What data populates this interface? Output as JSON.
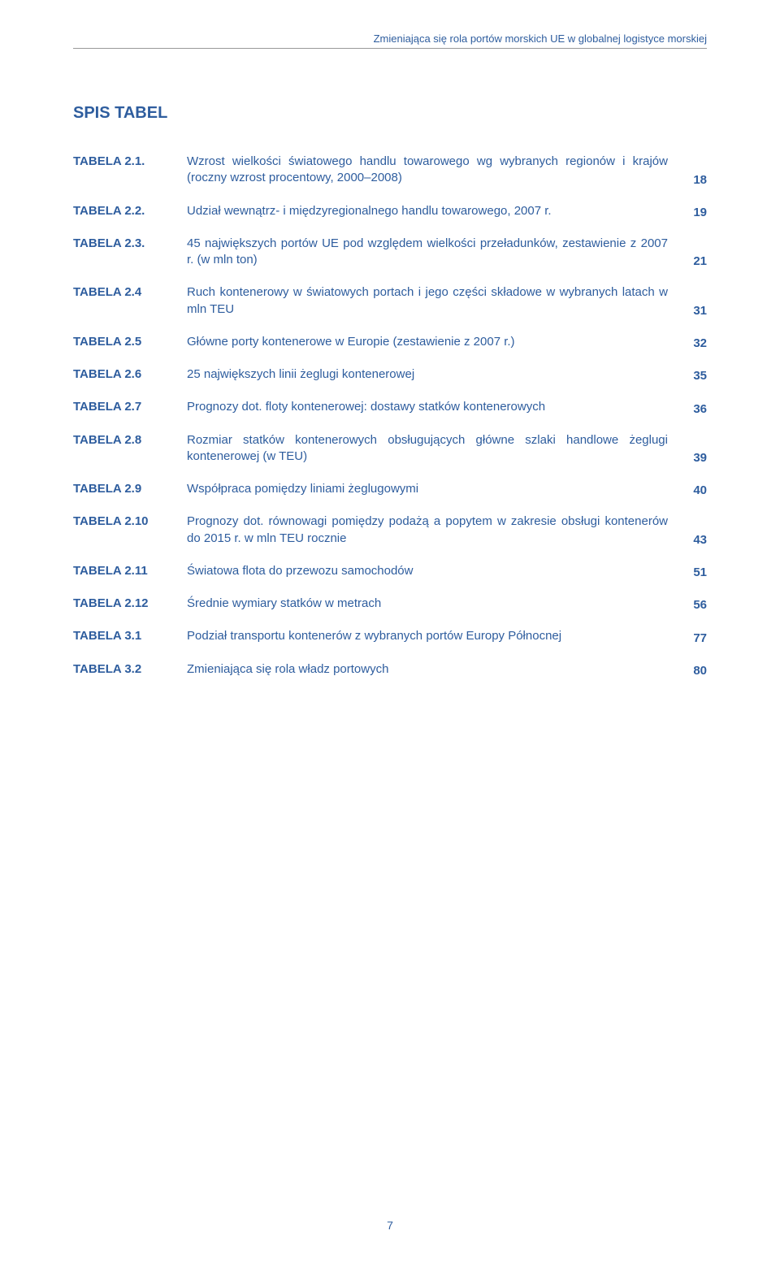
{
  "running_header": "Zmieniająca się rola portów morskich UE w globalnej logistyce morskiej",
  "title": "SPIS TABEL",
  "page_number": "7",
  "entries": [
    {
      "label": "TABELA 2.1.",
      "desc": "Wzrost wielkości światowego handlu towarowego wg wybranych regionów i krajów (roczny wzrost procentowy, 2000–2008)",
      "page": "18"
    },
    {
      "label": "TABELA 2.2.",
      "desc": "Udział wewnątrz- i międzyregionalnego handlu towarowego, 2007 r.",
      "page": "19"
    },
    {
      "label": "TABELA 2.3.",
      "desc": "45 największych portów UE pod względem wielkości przeładunków, zestawienie z 2007 r. (w mln ton)",
      "page": "21"
    },
    {
      "label": "TABELA 2.4",
      "desc": "Ruch kontenerowy w światowych portach i jego części składowe w wybranych latach w mln TEU",
      "page": "31"
    },
    {
      "label": "TABELA 2.5",
      "desc": "Główne porty kontenerowe w Europie (zestawienie z 2007 r.)",
      "page": "32"
    },
    {
      "label": "TABELA 2.6",
      "desc": "25 największych linii żeglugi kontenerowej",
      "page": "35"
    },
    {
      "label": "TABELA 2.7",
      "desc": "Prognozy dot. floty kontenerowej: dostawy statków kontenerowych",
      "page": "36"
    },
    {
      "label": "TABELA 2.8",
      "desc": "Rozmiar statków kontenerowych obsługujących główne szlaki handlowe żeglugi kontenerowej (w TEU)",
      "page": "39"
    },
    {
      "label": "TABELA 2.9",
      "desc": "Współpraca pomiędzy liniami żeglugowymi",
      "page": "40"
    },
    {
      "label": "TABELA 2.10",
      "desc": "Prognozy dot. równowagi pomiędzy podażą a popytem w zakresie obsługi kontenerów do 2015 r. w mln TEU rocznie",
      "page": "43"
    },
    {
      "label": "TABELA 2.11",
      "desc": "Światowa flota do przewozu samochodów",
      "page": "51"
    },
    {
      "label": "TABELA 2.12",
      "desc": "Średnie wymiary statków w metrach",
      "page": "56"
    },
    {
      "label": "TABELA 3.1",
      "desc": "Podział transportu kontenerów z wybranych portów Europy Północnej",
      "page": "77"
    },
    {
      "label": "TABELA 3.2",
      "desc": "Zmieniająca się rola władz portowych",
      "page": "80"
    }
  ]
}
